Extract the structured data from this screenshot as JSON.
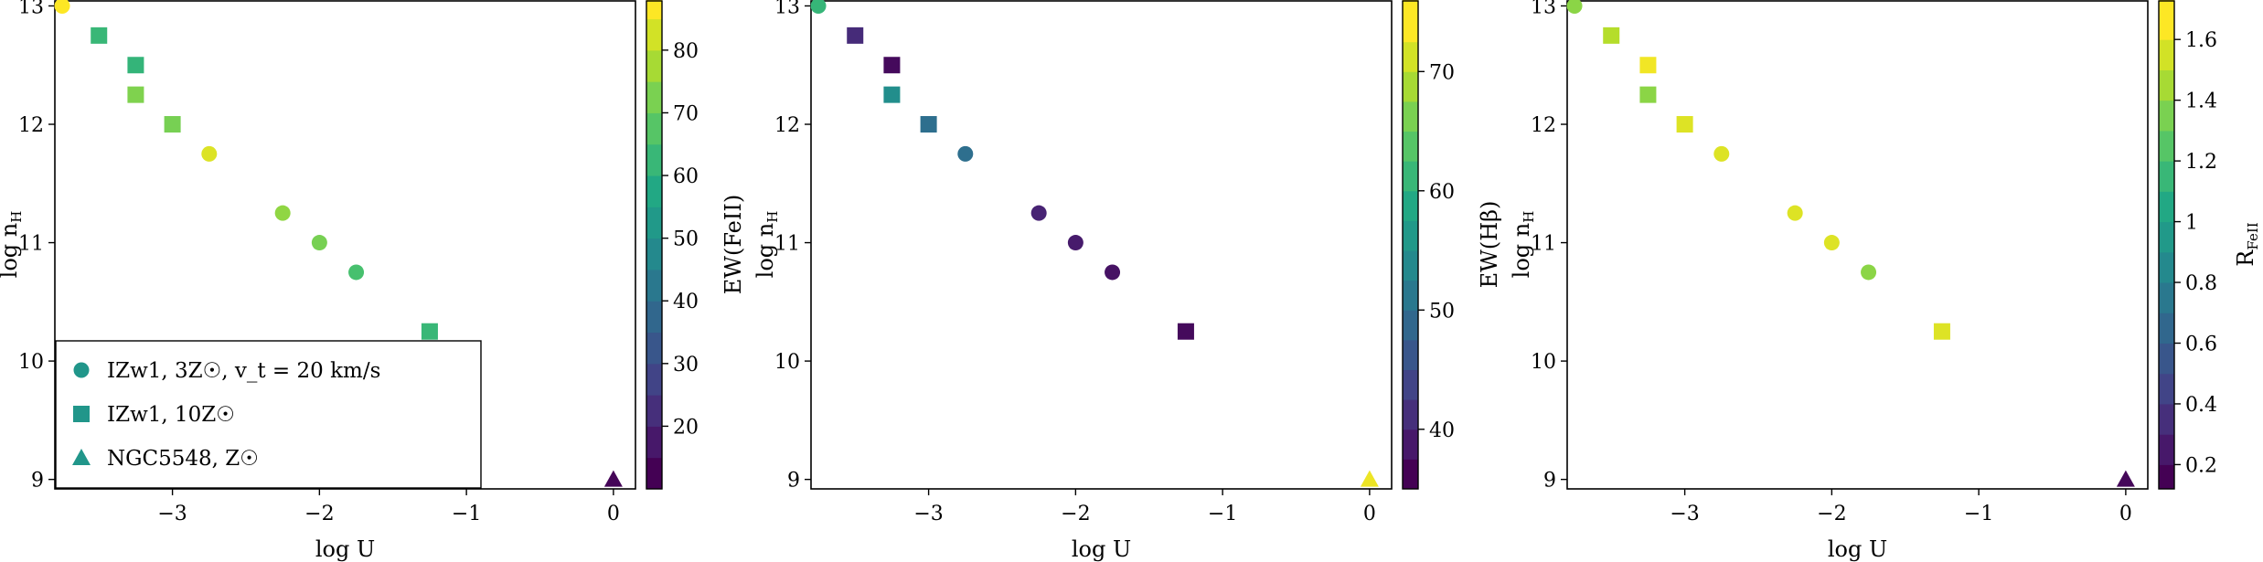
{
  "chart_data": [
    {
      "type": "scatter",
      "xlabel": "log U",
      "ylabel": "log n_H",
      "xlim": [
        -3.8,
        0.15
      ],
      "ylim": [
        8.92,
        13.05
      ],
      "x_ticks": [
        -3,
        -2,
        -1,
        0
      ],
      "y_ticks": [
        9,
        10,
        11,
        12,
        13
      ],
      "colorbar": {
        "label": "EW(FeII)",
        "range": [
          10,
          88
        ],
        "bounds": [
          10,
          15,
          20,
          25,
          30,
          35,
          40,
          45,
          50,
          55,
          60,
          65,
          70,
          75,
          80,
          85,
          88
        ],
        "ticks": [
          20,
          30,
          40,
          50,
          60,
          70,
          80
        ]
      },
      "legend": {
        "placement": "lower-left",
        "entries": [
          {
            "marker": "circle",
            "label": "IZw1, 3Z☉, v_t = 20 km/s"
          },
          {
            "marker": "square",
            "label": "IZw1, 10Z☉"
          },
          {
            "marker": "triangle",
            "label": "NGC5548, Z☉"
          }
        ]
      },
      "series": [
        {
          "name": "IZw1, 3Z☉, v_t = 20 km/s",
          "marker": "circle",
          "x": [
            -3.75,
            -2.75,
            -2.25,
            -2.0,
            -1.75
          ],
          "y": [
            13.0,
            11.75,
            11.25,
            11.0,
            10.75
          ],
          "c": [
            88,
            84,
            75,
            72,
            65
          ]
        },
        {
          "name": "IZw1, 10Z☉",
          "marker": "square",
          "x": [
            -3.5,
            -3.25,
            -3.25,
            -3.0,
            -1.25
          ],
          "y": [
            12.75,
            12.5,
            12.25,
            12.0,
            10.25
          ],
          "c": [
            62,
            61,
            73,
            72,
            62
          ]
        },
        {
          "name": "NGC5548, Z☉",
          "marker": "triangle",
          "x": [
            0.0
          ],
          "y": [
            9.0
          ],
          "c": [
            11
          ]
        }
      ]
    },
    {
      "type": "scatter",
      "xlabel": "log U",
      "ylabel": "log n_H",
      "xlim": [
        -3.8,
        0.15
      ],
      "ylim": [
        8.92,
        13.05
      ],
      "x_ticks": [
        -3,
        -2,
        -1,
        0
      ],
      "y_ticks": [
        9,
        10,
        11,
        12,
        13
      ],
      "colorbar": {
        "label": "EW(Hβ)",
        "range": [
          35,
          76
        ],
        "bounds": [
          35,
          37.5,
          40,
          42.5,
          45,
          47.5,
          50,
          52.5,
          55,
          57.5,
          60,
          62.5,
          65,
          67.5,
          70,
          72.5,
          76
        ],
        "ticks": [
          40,
          50,
          60,
          70
        ]
      },
      "series": [
        {
          "name": "IZw1, 3Z☉, v_t = 20 km/s",
          "marker": "circle",
          "x": [
            -3.75,
            -2.75,
            -2.25,
            -2.0,
            -1.75
          ],
          "y": [
            13.0,
            11.75,
            11.25,
            11.0,
            10.75
          ],
          "c": [
            62,
            50,
            39,
            38,
            37
          ]
        },
        {
          "name": "IZw1, 10Z☉",
          "marker": "square",
          "x": [
            -3.5,
            -3.25,
            -3.25,
            -3.0,
            -1.25
          ],
          "y": [
            12.75,
            12.5,
            12.25,
            12.0,
            10.25
          ],
          "c": [
            40,
            36,
            55,
            50,
            36
          ]
        },
        {
          "name": "NGC5548, Z☉",
          "marker": "triangle",
          "x": [
            0.0
          ],
          "y": [
            9.0
          ],
          "c": [
            75
          ]
        }
      ]
    },
    {
      "type": "scatter",
      "xlabel": "log U",
      "ylabel": "log n_H",
      "xlim": [
        -3.8,
        0.15
      ],
      "ylim": [
        8.92,
        13.05
      ],
      "x_ticks": [
        -3,
        -2,
        -1,
        0
      ],
      "y_ticks": [
        9,
        10,
        11,
        12,
        13
      ],
      "colorbar": {
        "label": "R_FeII",
        "range": [
          0.12,
          1.73
        ],
        "bounds": [
          0.12,
          0.2,
          0.3,
          0.4,
          0.5,
          0.6,
          0.7,
          0.8,
          0.9,
          1.0,
          1.1,
          1.2,
          1.3,
          1.4,
          1.5,
          1.6,
          1.73
        ],
        "ticks": [
          0.2,
          0.4,
          0.6,
          0.8,
          1.0,
          1.2,
          1.4,
          1.6
        ]
      },
      "series": [
        {
          "name": "IZw1, 3Z☉, v_t = 20 km/s",
          "marker": "circle",
          "x": [
            -3.75,
            -2.75,
            -2.25,
            -2.0,
            -1.75
          ],
          "y": [
            13.0,
            11.75,
            11.25,
            11.0,
            10.75
          ],
          "c": [
            1.45,
            1.65,
            1.65,
            1.65,
            1.45
          ]
        },
        {
          "name": "IZw1, 10Z☉",
          "marker": "square",
          "x": [
            -3.5,
            -3.25,
            -3.25,
            -3.0,
            -1.25
          ],
          "y": [
            12.75,
            12.5,
            12.25,
            12.0,
            10.25
          ],
          "c": [
            1.55,
            1.7,
            1.45,
            1.65,
            1.65
          ]
        },
        {
          "name": "NGC5548, Z☉",
          "marker": "triangle",
          "x": [
            0.0
          ],
          "y": [
            9.0
          ],
          "c": [
            0.15
          ]
        }
      ]
    }
  ]
}
